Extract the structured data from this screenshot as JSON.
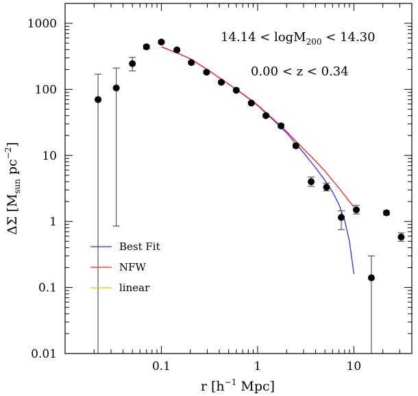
{
  "chart_data": {
    "type": "scatter",
    "title": "",
    "xlabel_parts": [
      "r [h",
      "−1",
      " Mpc]"
    ],
    "ylabel_parts": [
      "ΔΣ  [M",
      "sun",
      "  pc",
      "−2",
      "]"
    ],
    "xscale": "log",
    "yscale": "log",
    "xlim": [
      0.01,
      40
    ],
    "ylim": [
      0.01,
      2000
    ],
    "x_ticks": [
      {
        "value": 0.1,
        "label": "0.1"
      },
      {
        "value": 1,
        "label": "1"
      },
      {
        "value": 10,
        "label": "10"
      }
    ],
    "y_ticks": [
      {
        "value": 0.01,
        "label": "0.01"
      },
      {
        "value": 0.1,
        "label": "0.1"
      },
      {
        "value": 1,
        "label": "1"
      },
      {
        "value": 10,
        "label": "10"
      },
      {
        "value": 100,
        "label": "100"
      },
      {
        "value": 1000,
        "label": "1000"
      }
    ],
    "grid": false,
    "annotations": [
      {
        "parts": [
          "14.14  <  logM",
          "200",
          "  <  14.30"
        ]
      },
      {
        "parts": [
          "0.00  <  z  <  0.34"
        ]
      }
    ],
    "data_points": [
      {
        "x": 0.022,
        "y": 70,
        "err_lo": 0.01,
        "err_hi": 170
      },
      {
        "x": 0.034,
        "y": 105,
        "err_lo": 0.85,
        "err_hi": 210
      },
      {
        "x": 0.05,
        "y": 245,
        "err_lo": 190,
        "err_hi": 305
      },
      {
        "x": 0.07,
        "y": 440,
        "err_lo": 410,
        "err_hi": 470
      },
      {
        "x": 0.1,
        "y": 520,
        "err_lo": 495,
        "err_hi": 545
      },
      {
        "x": 0.145,
        "y": 395,
        "err_lo": 375,
        "err_hi": 415
      },
      {
        "x": 0.205,
        "y": 255,
        "err_lo": 243,
        "err_hi": 268
      },
      {
        "x": 0.295,
        "y": 182,
        "err_lo": 174,
        "err_hi": 190
      },
      {
        "x": 0.42,
        "y": 128,
        "err_lo": 122,
        "err_hi": 134
      },
      {
        "x": 0.6,
        "y": 97,
        "err_lo": 93,
        "err_hi": 101
      },
      {
        "x": 0.86,
        "y": 62,
        "err_lo": 59,
        "err_hi": 65
      },
      {
        "x": 1.22,
        "y": 40,
        "err_lo": 38,
        "err_hi": 42
      },
      {
        "x": 1.75,
        "y": 28,
        "err_lo": 26.5,
        "err_hi": 29.5
      },
      {
        "x": 2.5,
        "y": 14,
        "err_lo": 13,
        "err_hi": 15
      },
      {
        "x": 3.6,
        "y": 4,
        "err_lo": 3.4,
        "err_hi": 4.7
      },
      {
        "x": 5.2,
        "y": 3.3,
        "err_lo": 2.9,
        "err_hi": 3.8
      },
      {
        "x": 7.4,
        "y": 1.15,
        "err_lo": 0.75,
        "err_hi": 1.45
      },
      {
        "x": 10.6,
        "y": 1.5,
        "err_lo": 1.3,
        "err_hi": 1.75
      },
      {
        "x": 15.2,
        "y": 0.14,
        "err_lo": 0.01,
        "err_hi": 0.3
      },
      {
        "x": 21.8,
        "y": 1.35,
        "err_lo": 1.25,
        "err_hi": 1.45
      },
      {
        "x": 31,
        "y": 0.58,
        "err_lo": 0.5,
        "err_hi": 0.67
      }
    ],
    "series": [
      {
        "name": "Best Fit",
        "color": "#2b2bff",
        "x": [
          0.1,
          0.15,
          0.2,
          0.3,
          0.5,
          0.7,
          1.0,
          1.5,
          2.0,
          3.0,
          4.0,
          5.0,
          6.0,
          7.0,
          8.0,
          9.0,
          10.0
        ],
        "y": [
          440,
          350,
          290,
          200,
          120,
          85,
          57,
          33,
          22,
          11,
          6.5,
          4.2,
          2.8,
          1.8,
          1.05,
          0.5,
          0.16
        ]
      },
      {
        "name": "NFW",
        "color": "#ff2020",
        "x": [
          0.1,
          0.15,
          0.2,
          0.3,
          0.5,
          0.7,
          1.0,
          1.5,
          2.0,
          3.0,
          4.0,
          5.0,
          6.0,
          7.0,
          8.0,
          9.0,
          10.0
        ],
        "y": [
          440,
          350,
          290,
          200,
          120,
          86,
          58,
          34,
          23,
          12.5,
          8.2,
          5.8,
          4.2,
          3.2,
          2.5,
          2.0,
          1.65
        ]
      },
      {
        "name": "linear",
        "color": "#ffc000",
        "x": [],
        "y": []
      }
    ],
    "legend_position": "lower-left"
  }
}
